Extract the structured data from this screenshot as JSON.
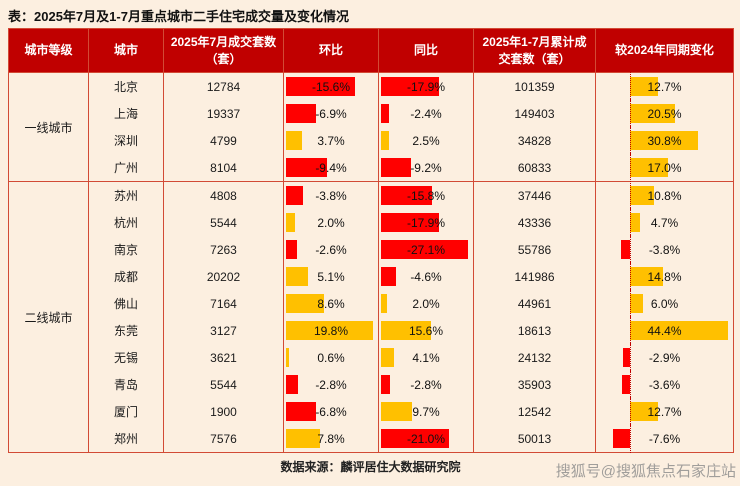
{
  "title": "表：2025年7月及1-7月重点城市二手住宅成交量及变化情况",
  "source": "数据来源：麟评居住大数据研究院",
  "watermark": "搜狐号@搜狐焦点石家庄站",
  "colors": {
    "page_bg": "#fcefe0",
    "header_bg": "#c00000",
    "header_text": "#ffffff",
    "border": "#d24a35",
    "bar_negative": "#ff0000",
    "bar_positive": "#ffc000",
    "axis_dotted": "#c00000",
    "text": "#1a1a1a"
  },
  "table": {
    "headers": [
      "城市等级",
      "城市",
      "2025年7月成交套数（套）",
      "环比",
      "同比",
      "2025年1-7月累计成交套数（套）",
      "较2024年同期变化"
    ],
    "bar_scales": {
      "mom_max_abs": 19.8,
      "yoy_max_abs": 27.1,
      "change_max_abs": 44.4,
      "change_axis_pct": 24
    },
    "groups": [
      {
        "tier": "一线城市",
        "rows": [
          {
            "city": "北京",
            "jul_sales": "12784",
            "mom_pct": -15.6,
            "yoy_pct": -17.9,
            "cum_sales": "101359",
            "change_pct": 12.7
          },
          {
            "city": "上海",
            "jul_sales": "19337",
            "mom_pct": -6.9,
            "yoy_pct": -2.4,
            "cum_sales": "149403",
            "change_pct": 20.5
          },
          {
            "city": "深圳",
            "jul_sales": "4799",
            "mom_pct": 3.7,
            "yoy_pct": 2.5,
            "cum_sales": "34828",
            "change_pct": 30.8
          },
          {
            "city": "广州",
            "jul_sales": "8104",
            "mom_pct": -9.4,
            "yoy_pct": -9.2,
            "cum_sales": "60833",
            "change_pct": 17.0
          }
        ]
      },
      {
        "tier": "二线城市",
        "rows": [
          {
            "city": "苏州",
            "jul_sales": "4808",
            "mom_pct": -3.8,
            "yoy_pct": -15.8,
            "cum_sales": "37446",
            "change_pct": 10.8
          },
          {
            "city": "杭州",
            "jul_sales": "5544",
            "mom_pct": 2.0,
            "yoy_pct": -17.9,
            "cum_sales": "43336",
            "change_pct": 4.7
          },
          {
            "city": "南京",
            "jul_sales": "7263",
            "mom_pct": -2.6,
            "yoy_pct": -27.1,
            "cum_sales": "55786",
            "change_pct": -3.8
          },
          {
            "city": "成都",
            "jul_sales": "20202",
            "mom_pct": 5.1,
            "yoy_pct": -4.6,
            "cum_sales": "141986",
            "change_pct": 14.8
          },
          {
            "city": "佛山",
            "jul_sales": "7164",
            "mom_pct": 8.6,
            "yoy_pct": 2.0,
            "cum_sales": "44961",
            "change_pct": 6.0
          },
          {
            "city": "东莞",
            "jul_sales": "3127",
            "mom_pct": 19.8,
            "yoy_pct": 15.6,
            "cum_sales": "18613",
            "change_pct": 44.4
          },
          {
            "city": "无锡",
            "jul_sales": "3621",
            "mom_pct": 0.6,
            "yoy_pct": 4.1,
            "cum_sales": "24132",
            "change_pct": -2.9
          },
          {
            "city": "青岛",
            "jul_sales": "5544",
            "mom_pct": -2.8,
            "yoy_pct": -2.8,
            "cum_sales": "35903",
            "change_pct": -3.6
          },
          {
            "city": "厦门",
            "jul_sales": "1900",
            "mom_pct": -6.8,
            "yoy_pct": 9.7,
            "cum_sales": "12542",
            "change_pct": 12.7
          },
          {
            "city": "郑州",
            "jul_sales": "7576",
            "mom_pct": 7.8,
            "yoy_pct": -21.0,
            "cum_sales": "50013",
            "change_pct": -7.6
          }
        ]
      }
    ]
  },
  "chart_data": {
    "type": "table",
    "title": "表：2025年7月及1-7月重点城市二手住宅成交量及变化情况",
    "columns": [
      "城市等级",
      "城市",
      "2025年7月成交套数（套）",
      "环比",
      "同比",
      "2025年1-7月累计成交套数（套）",
      "较2024年同期变化"
    ],
    "rows": [
      [
        "一线城市",
        "北京",
        "12784",
        "-15.6%",
        "-17.9%",
        "101359",
        "12.7%"
      ],
      [
        "一线城市",
        "上海",
        "19337",
        "-6.9%",
        "-2.4%",
        "149403",
        "20.5%"
      ],
      [
        "一线城市",
        "深圳",
        "4799",
        "3.7%",
        "2.5%",
        "34828",
        "30.8%"
      ],
      [
        "一线城市",
        "广州",
        "8104",
        "-9.4%",
        "-9.2%",
        "60833",
        "17.0%"
      ],
      [
        "二线城市",
        "苏州",
        "4808",
        "-3.8%",
        "-15.8%",
        "37446",
        "10.8%"
      ],
      [
        "二线城市",
        "杭州",
        "5544",
        "2.0%",
        "-17.9%",
        "43336",
        "4.7%"
      ],
      [
        "二线城市",
        "南京",
        "7263",
        "-2.6%",
        "-27.1%",
        "55786",
        "-3.8%"
      ],
      [
        "二线城市",
        "成都",
        "20202",
        "5.1%",
        "-4.6%",
        "141986",
        "14.8%"
      ],
      [
        "二线城市",
        "佛山",
        "7164",
        "8.6%",
        "2.0%",
        "44961",
        "6.0%"
      ],
      [
        "二线城市",
        "东莞",
        "3127",
        "19.8%",
        "15.6%",
        "18613",
        "44.4%"
      ],
      [
        "二线城市",
        "无锡",
        "3621",
        "0.6%",
        "4.1%",
        "24132",
        "-2.9%"
      ],
      [
        "二线城市",
        "青岛",
        "5544",
        "-2.8%",
        "-2.8%",
        "35903",
        "-3.6%"
      ],
      [
        "二线城市",
        "厦门",
        "1900",
        "-6.8%",
        "9.7%",
        "12542",
        "12.7%"
      ],
      [
        "二线城市",
        "郑州",
        "7576",
        "7.8%",
        "-21.0%",
        "50013",
        "-7.6%"
      ]
    ],
    "layout_hints": {
      "bar_columns": [
        "环比",
        "同比",
        "较2024年同期变化"
      ],
      "negative_bar_color": "#ff0000",
      "positive_bar_color": "#ffc000",
      "grid": "red cell borders, group divider between 一线城市 and 二线城市"
    }
  }
}
